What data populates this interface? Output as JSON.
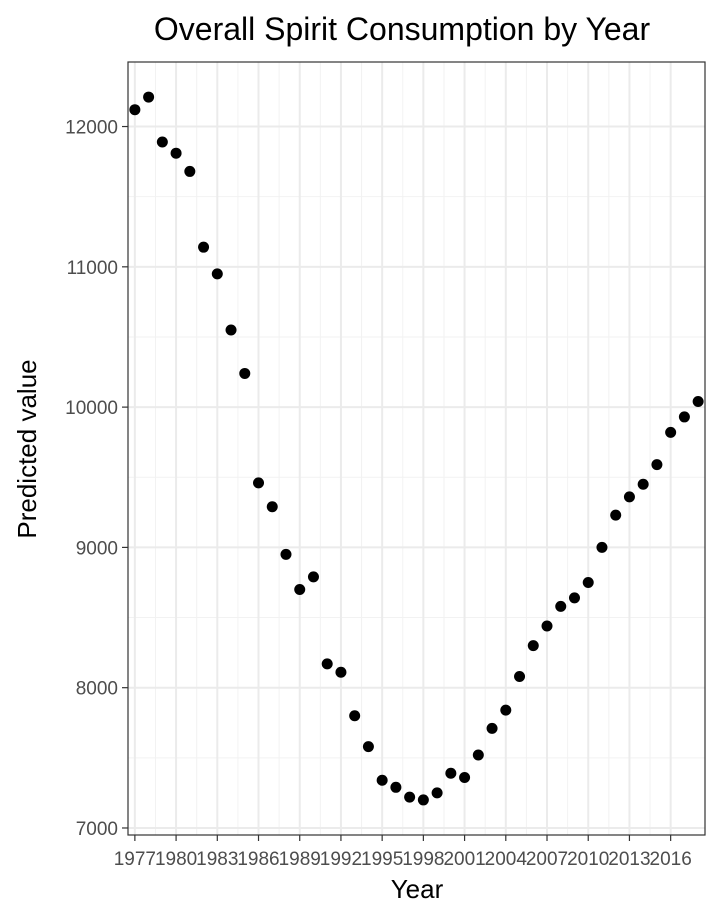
{
  "chart_data": {
    "type": "scatter",
    "title": "Overall Spirit Consumption by Year",
    "xlabel": "Year",
    "ylabel": "Predicted value",
    "xlim": [
      1976.5,
      2018.5
    ],
    "ylim": [
      6950,
      12460
    ],
    "x_ticks": [
      1977,
      1980,
      1983,
      1986,
      1989,
      1992,
      1995,
      1998,
      2001,
      2004,
      2007,
      2010,
      2013,
      2016
    ],
    "x_tick_labels": [
      "1977",
      "1980",
      "1983",
      "1986",
      "1989",
      "1992",
      "1995",
      "1998",
      "2001",
      "2004",
      "2007",
      "2010",
      "2013",
      "2016"
    ],
    "y_ticks": [
      7000,
      8000,
      9000,
      10000,
      11000,
      12000
    ],
    "y_tick_labels": [
      "7000",
      "8000",
      "9000",
      "10000",
      "11000",
      "12000"
    ],
    "grid": true,
    "legend": "none",
    "point_color": "#000000",
    "x": [
      1977,
      1978,
      1979,
      1980,
      1981,
      1982,
      1983,
      1984,
      1985,
      1986,
      1987,
      1988,
      1989,
      1990,
      1991,
      1992,
      1993,
      1994,
      1995,
      1996,
      1997,
      1998,
      1999,
      2000,
      2001,
      2002,
      2003,
      2004,
      2005,
      2006,
      2007,
      2008,
      2009,
      2010,
      2011,
      2012,
      2013,
      2014,
      2015,
      2016,
      2017,
      2018
    ],
    "y": [
      12120,
      12210,
      11890,
      11810,
      11680,
      11140,
      10950,
      10550,
      10240,
      9460,
      9290,
      8950,
      8700,
      8790,
      8170,
      8110,
      7800,
      7580,
      7340,
      7290,
      7220,
      7200,
      7250,
      7390,
      7360,
      7520,
      7710,
      7840,
      8080,
      8300,
      8440,
      8580,
      8640,
      8750,
      9000,
      9230,
      9360,
      9450,
      9590,
      9820,
      9930,
      10040
    ]
  }
}
